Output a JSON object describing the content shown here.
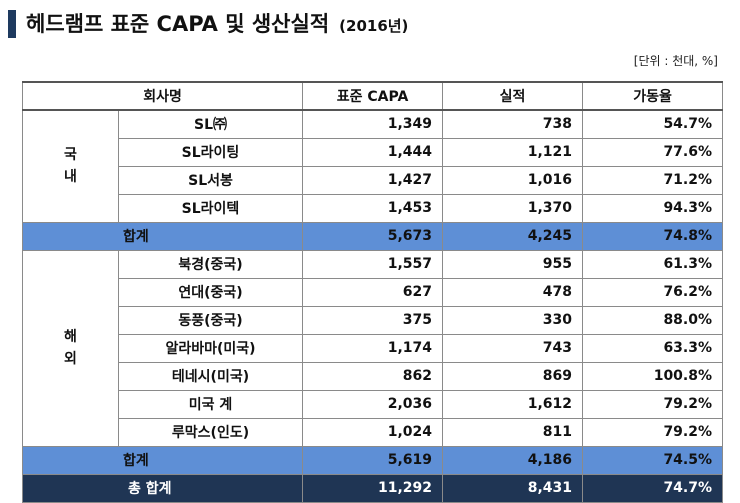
{
  "title": {
    "main": "헤드램프 표준 CAPA 및 생산실적",
    "year": "(2016년)"
  },
  "unit_note": "[단위 : 천대, %]",
  "columns": [
    "회사명",
    "표준 CAPA",
    "실적",
    "가동율"
  ],
  "domestic": {
    "region_chars": [
      "국",
      "내"
    ],
    "rows": [
      {
        "company": "SL㈜",
        "capa": "1,349",
        "actual": "738",
        "rate": "54.7%"
      },
      {
        "company": "SL라이팅",
        "capa": "1,444",
        "actual": "1,121",
        "rate": "77.6%"
      },
      {
        "company": "SL서봉",
        "capa": "1,427",
        "actual": "1,016",
        "rate": "71.2%"
      },
      {
        "company": "SL라이텍",
        "capa": "1,453",
        "actual": "1,370",
        "rate": "94.3%"
      }
    ],
    "subtotal": {
      "label": "합계",
      "capa": "5,673",
      "actual": "4,245",
      "rate": "74.8%"
    }
  },
  "overseas": {
    "region_chars": [
      "해",
      "외"
    ],
    "rows": [
      {
        "company": "북경(중국)",
        "capa": "1,557",
        "actual": "955",
        "rate": "61.3%"
      },
      {
        "company": "연대(중국)",
        "capa": "627",
        "actual": "478",
        "rate": "76.2%"
      },
      {
        "company": "동풍(중국)",
        "capa": "375",
        "actual": "330",
        "rate": "88.0%"
      },
      {
        "company": "알라바마(미국)",
        "capa": "1,174",
        "actual": "743",
        "rate": "63.3%"
      },
      {
        "company": "테네시(미국)",
        "capa": "862",
        "actual": "869",
        "rate": "100.8%"
      },
      {
        "company": "미국 계",
        "capa": "2,036",
        "actual": "1,612",
        "rate": "79.2%"
      },
      {
        "company": "루막스(인도)",
        "capa": "1,024",
        "actual": "811",
        "rate": "79.2%"
      }
    ],
    "subtotal": {
      "label": "합계",
      "capa": "5,619",
      "actual": "4,186",
      "rate": "74.5%"
    }
  },
  "grand_total": {
    "label": "총 합계",
    "capa": "11,292",
    "actual": "8,431",
    "rate": "74.7%"
  },
  "colors": {
    "title_bar": "#1e3a5f",
    "subtotal_bg": "#5e8fd6",
    "total_bg": "#1f3554"
  }
}
